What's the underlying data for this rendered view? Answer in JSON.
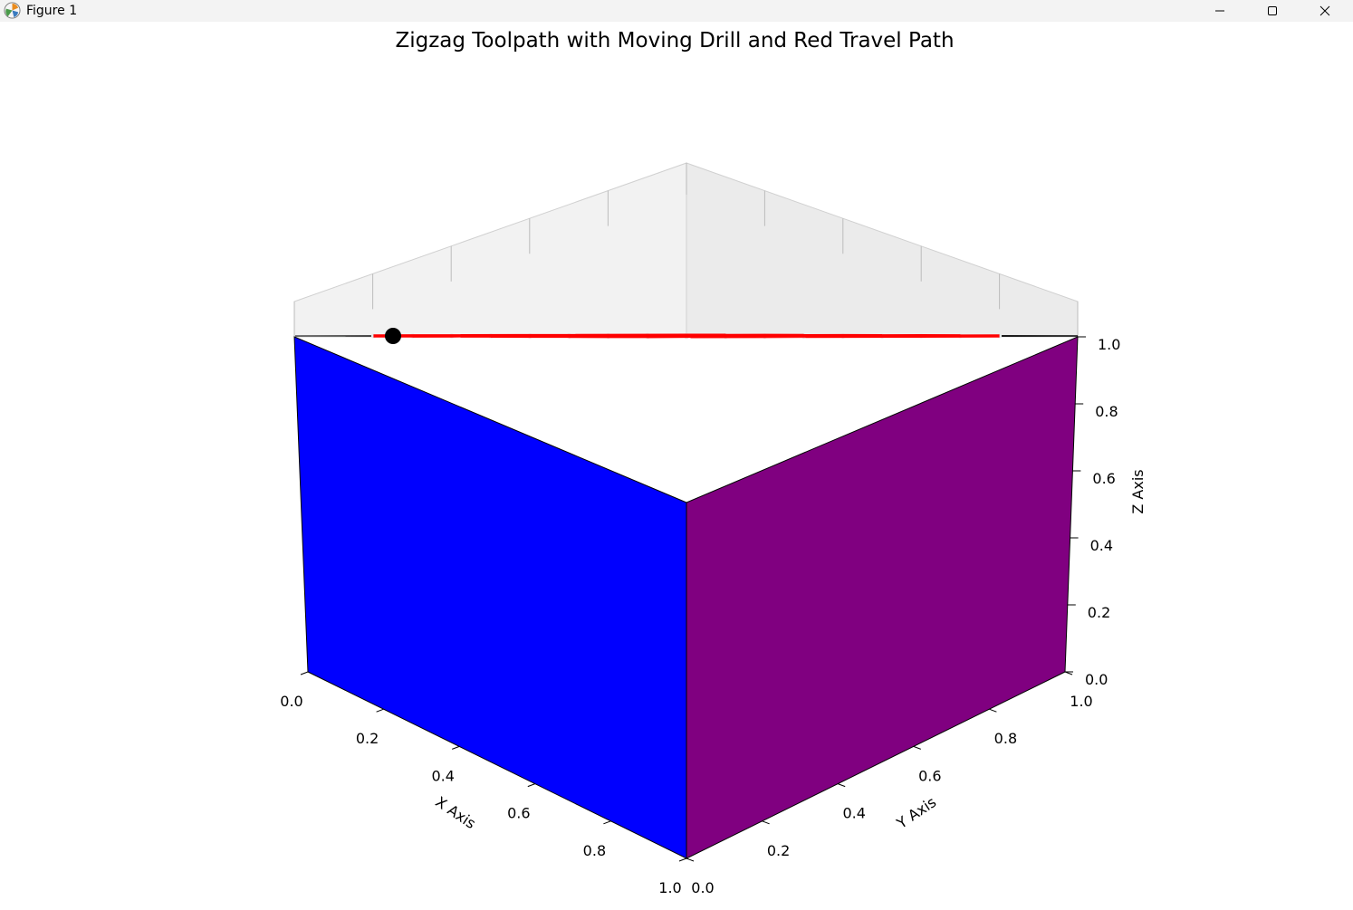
{
  "window": {
    "title": "Figure 1",
    "minimize_icon": "minimize-icon",
    "maximize_icon": "maximize-icon",
    "close_icon": "close-icon"
  },
  "chart_data": {
    "type": "3d-surface",
    "title": "Zigzag Toolpath with Moving Drill and Red Travel Path",
    "xlabel": "X Axis",
    "ylabel": "Y Axis",
    "zlabel": "Z Axis",
    "xlim": [
      0,
      1
    ],
    "ylim": [
      0,
      1
    ],
    "zlim": [
      0,
      1
    ],
    "xticks": [
      "0.0",
      "0.2",
      "0.4",
      "0.6",
      "0.8",
      "1.0"
    ],
    "yticks": [
      "0.0",
      "0.2",
      "0.4",
      "0.6",
      "0.8",
      "1.0"
    ],
    "zticks": [
      "0.0",
      "0.2",
      "0.4",
      "0.6",
      "0.8",
      "1.0"
    ],
    "colors": {
      "front_x_face": "#0000ff",
      "front_y_face": "#800080",
      "top_border": "#008000",
      "region_low_y": "#808080",
      "region_high_y": "#26d7d7",
      "region_low_x": "#db9a2b",
      "toolpath": "#ff0000",
      "grid": "#d8d8d8",
      "drill": "#000000"
    },
    "top_face": {
      "z": 1.0,
      "inner_range": [
        0.1,
        0.9
      ],
      "region_split": 0.5
    },
    "toolpath": [
      [
        0.9,
        0.1
      ],
      [
        0.9,
        0.9
      ],
      [
        0.8,
        0.9
      ],
      [
        0.8,
        0.1
      ],
      [
        0.7,
        0.1
      ],
      [
        0.7,
        0.9
      ],
      [
        0.6,
        0.9
      ],
      [
        0.6,
        0.1
      ],
      [
        0.5,
        0.1
      ],
      [
        0.5,
        0.9
      ],
      [
        0.4,
        0.9
      ],
      [
        0.4,
        0.1
      ],
      [
        0.3,
        0.1
      ],
      [
        0.3,
        0.9
      ],
      [
        0.2,
        0.9
      ],
      [
        0.2,
        0.1
      ],
      [
        0.1,
        0.1
      ],
      [
        0.1,
        0.9
      ],
      [
        0.1,
        0.1
      ],
      [
        0.9,
        0.9
      ]
    ],
    "drill_position": [
      0.15,
      0.9,
      1.0
    ]
  }
}
